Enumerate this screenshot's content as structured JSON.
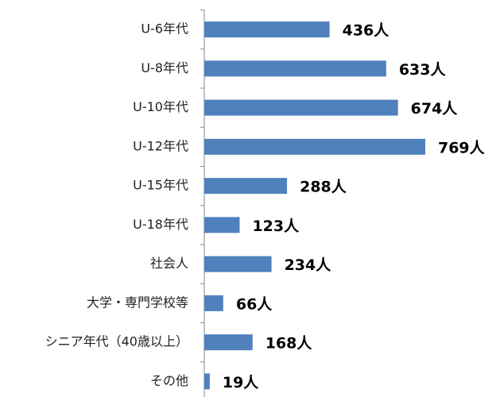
{
  "chart_data": {
    "type": "bar",
    "orientation": "horizontal",
    "categories": [
      "U-6年代",
      "U-8年代",
      "U-10年代",
      "U-12年代",
      "U-15年代",
      "U-18年代",
      "社会人",
      "大学・専門学校等",
      "シニア年代（40歳以上）",
      "その他"
    ],
    "values": [
      436,
      633,
      674,
      769,
      288,
      123,
      234,
      66,
      168,
      19
    ],
    "value_labels": [
      "436人",
      "633人",
      "674人",
      "769人",
      "288人",
      "123人",
      "234人",
      "66人",
      "168人",
      "19人"
    ],
    "color": "#4f81bd",
    "xlim": [
      0,
      1000
    ]
  }
}
